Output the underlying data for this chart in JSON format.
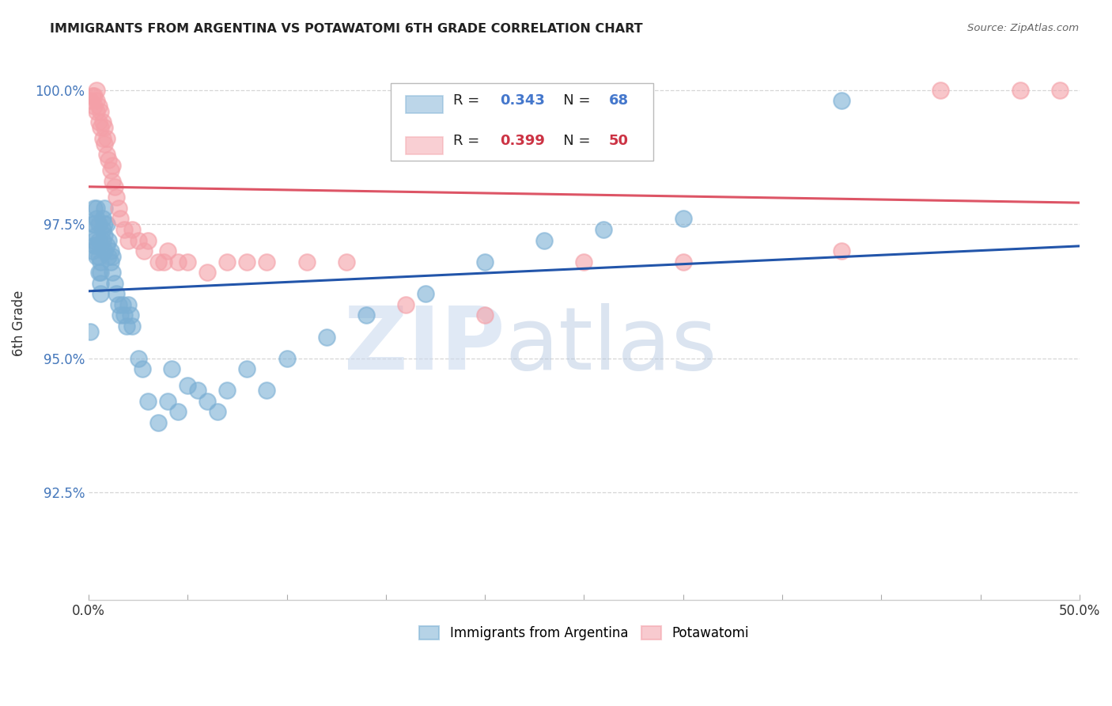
{
  "title": "IMMIGRANTS FROM ARGENTINA VS POTAWATOMI 6TH GRADE CORRELATION CHART",
  "source": "Source: ZipAtlas.com",
  "ylabel": "6th Grade",
  "xlim": [
    0.0,
    0.5
  ],
  "ylim": [
    0.905,
    1.008
  ],
  "xticks": [
    0.0,
    0.05,
    0.1,
    0.15,
    0.2,
    0.25,
    0.3,
    0.35,
    0.4,
    0.45,
    0.5
  ],
  "xticklabels_ends": [
    "0.0%",
    "50.0%"
  ],
  "yticks": [
    0.925,
    0.95,
    0.975,
    1.0
  ],
  "yticklabels": [
    "92.5%",
    "95.0%",
    "97.5%",
    "100.0%"
  ],
  "blue_color": "#7BAFD4",
  "pink_color": "#F4A0A8",
  "blue_line_color": "#2255AA",
  "pink_line_color": "#DD5566",
  "blue_R": 0.343,
  "blue_N": 68,
  "pink_R": 0.399,
  "pink_N": 50,
  "legend_label_blue": "Immigrants from Argentina",
  "legend_label_pink": "Potawatomi",
  "blue_x": [
    0.001,
    0.002,
    0.002,
    0.003,
    0.003,
    0.003,
    0.003,
    0.004,
    0.004,
    0.004,
    0.004,
    0.004,
    0.005,
    0.005,
    0.005,
    0.005,
    0.006,
    0.006,
    0.006,
    0.006,
    0.007,
    0.007,
    0.007,
    0.008,
    0.008,
    0.008,
    0.008,
    0.009,
    0.009,
    0.01,
    0.01,
    0.011,
    0.011,
    0.012,
    0.012,
    0.013,
    0.014,
    0.015,
    0.016,
    0.017,
    0.018,
    0.019,
    0.02,
    0.021,
    0.022,
    0.025,
    0.027,
    0.03,
    0.035,
    0.04,
    0.042,
    0.045,
    0.05,
    0.055,
    0.06,
    0.065,
    0.07,
    0.08,
    0.09,
    0.1,
    0.12,
    0.14,
    0.17,
    0.2,
    0.23,
    0.26,
    0.3,
    0.38
  ],
  "blue_y": [
    0.955,
    0.97,
    0.975,
    0.971,
    0.972,
    0.975,
    0.978,
    0.969,
    0.971,
    0.973,
    0.976,
    0.978,
    0.966,
    0.969,
    0.972,
    0.975,
    0.962,
    0.964,
    0.966,
    0.968,
    0.972,
    0.974,
    0.976,
    0.97,
    0.973,
    0.975,
    0.978,
    0.971,
    0.975,
    0.969,
    0.972,
    0.968,
    0.97,
    0.966,
    0.969,
    0.964,
    0.962,
    0.96,
    0.958,
    0.96,
    0.958,
    0.956,
    0.96,
    0.958,
    0.956,
    0.95,
    0.948,
    0.942,
    0.938,
    0.942,
    0.948,
    0.94,
    0.945,
    0.944,
    0.942,
    0.94,
    0.944,
    0.948,
    0.944,
    0.95,
    0.954,
    0.958,
    0.962,
    0.968,
    0.972,
    0.974,
    0.976,
    0.998
  ],
  "pink_x": [
    0.001,
    0.002,
    0.003,
    0.003,
    0.004,
    0.004,
    0.004,
    0.005,
    0.005,
    0.006,
    0.006,
    0.007,
    0.007,
    0.008,
    0.008,
    0.009,
    0.009,
    0.01,
    0.011,
    0.012,
    0.012,
    0.013,
    0.014,
    0.015,
    0.016,
    0.018,
    0.02,
    0.022,
    0.025,
    0.028,
    0.03,
    0.035,
    0.038,
    0.04,
    0.045,
    0.05,
    0.06,
    0.07,
    0.08,
    0.09,
    0.11,
    0.13,
    0.16,
    0.2,
    0.25,
    0.3,
    0.38,
    0.43,
    0.47,
    0.49
  ],
  "pink_y": [
    0.998,
    0.999,
    0.997,
    0.999,
    0.996,
    0.998,
    1.0,
    0.994,
    0.997,
    0.993,
    0.996,
    0.991,
    0.994,
    0.99,
    0.993,
    0.988,
    0.991,
    0.987,
    0.985,
    0.983,
    0.986,
    0.982,
    0.98,
    0.978,
    0.976,
    0.974,
    0.972,
    0.974,
    0.972,
    0.97,
    0.972,
    0.968,
    0.968,
    0.97,
    0.968,
    0.968,
    0.966,
    0.968,
    0.968,
    0.968,
    0.968,
    0.968,
    0.96,
    0.958,
    0.968,
    0.968,
    0.97,
    1.0,
    1.0,
    1.0
  ]
}
